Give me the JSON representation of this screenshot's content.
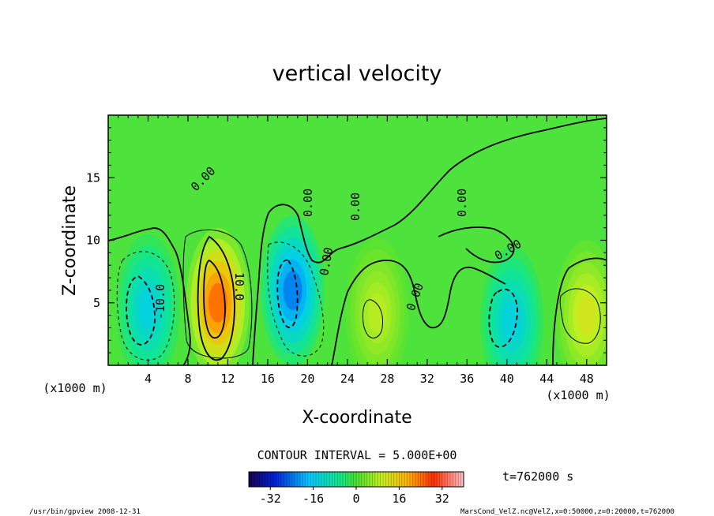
{
  "chart_data": {
    "type": "heatmap",
    "title": "vertical velocity",
    "xlabel": "X-coordinate",
    "ylabel": "Z-coordinate",
    "x_unit_left": "(x1000 m)",
    "x_unit_right": "(x1000 m)",
    "x_ticks": [
      "4",
      "8",
      "12",
      "16",
      "20",
      "24",
      "28",
      "32",
      "36",
      "40",
      "44",
      "48"
    ],
    "y_ticks": [
      "5",
      "10",
      "15"
    ],
    "xlim": [
      0,
      50
    ],
    "ylim": [
      0,
      20
    ],
    "contour_interval_text": "CONTOUR INTERVAL = 5.000E+00",
    "contour_labels": [
      "0.00",
      "0.00",
      "0.00",
      "0.00",
      "0.00",
      "0.00",
      "0.00",
      "10.0",
      "-10.0"
    ],
    "colorbar": {
      "min": -40,
      "max": 40,
      "ticks": [
        "-32",
        "-16",
        "0",
        "16",
        "32"
      ]
    },
    "cells": [
      {
        "x": 4,
        "z": 4.5,
        "w": -15
      },
      {
        "x": 11,
        "z": 5,
        "w": 26
      },
      {
        "x": 18.5,
        "z": 6,
        "w": -24
      },
      {
        "x": 27,
        "z": 4.2,
        "w": 9
      },
      {
        "x": 40.5,
        "z": 3.5,
        "w": -15
      },
      {
        "x": 48,
        "z": 4,
        "w": 12
      }
    ],
    "time_label": "t=762000 s"
  },
  "footer": {
    "left": "/usr/bin/gpview   2008-12-31",
    "right": "MarsCond_VelZ.nc@VelZ,x=0:50000,z=0:20000,t=762000"
  }
}
